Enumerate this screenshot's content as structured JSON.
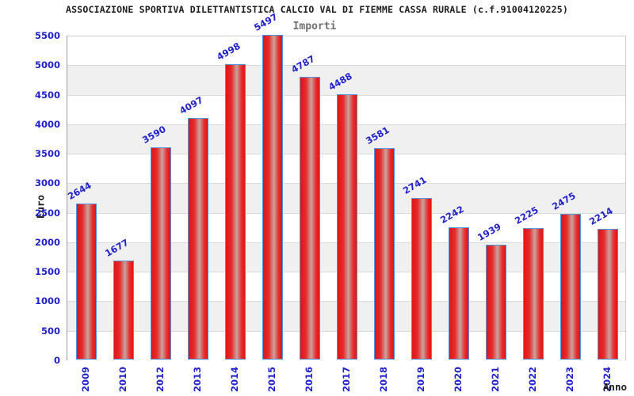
{
  "chart_data": {
    "type": "bar",
    "title": "ASSOCIAZIONE SPORTIVA DILETTANTISTICA CALCIO VAL DI FIEMME CASSA RURALE (c.f.91004120225)",
    "subtitle": "Importi",
    "xlabel": "Anno",
    "ylabel": "Euro",
    "categories": [
      "2009",
      "2010",
      "2012",
      "2013",
      "2014",
      "2015",
      "2016",
      "2017",
      "2018",
      "2019",
      "2020",
      "2021",
      "2022",
      "2023",
      "2024"
    ],
    "values": [
      2644,
      1677,
      3590,
      4097,
      4998,
      5497,
      4787,
      4488,
      3581,
      2741,
      2242,
      1939,
      2225,
      2475,
      2214
    ],
    "ylim": [
      0,
      5500
    ],
    "ytick_step": 500,
    "yticks": [
      0,
      500,
      1000,
      1500,
      2000,
      2500,
      3000,
      3500,
      4000,
      4500,
      5000,
      5500
    ],
    "grid": "horizontal bands alternating white/gray every 500, gridlines at band edges",
    "legend": "none",
    "colors": {
      "bar_edge_red": "#df1418",
      "bar_mid_red": "#e62c2c",
      "bar_center_light": "#c9a39e",
      "bar_border_blue": "#4f96dd",
      "label_blue": "#2222cc",
      "band_gray": "#f0f0f0",
      "grid_line": "#dcdcdc",
      "title_black": "#1c1c1c",
      "subtitle_gray": "#707070"
    }
  }
}
